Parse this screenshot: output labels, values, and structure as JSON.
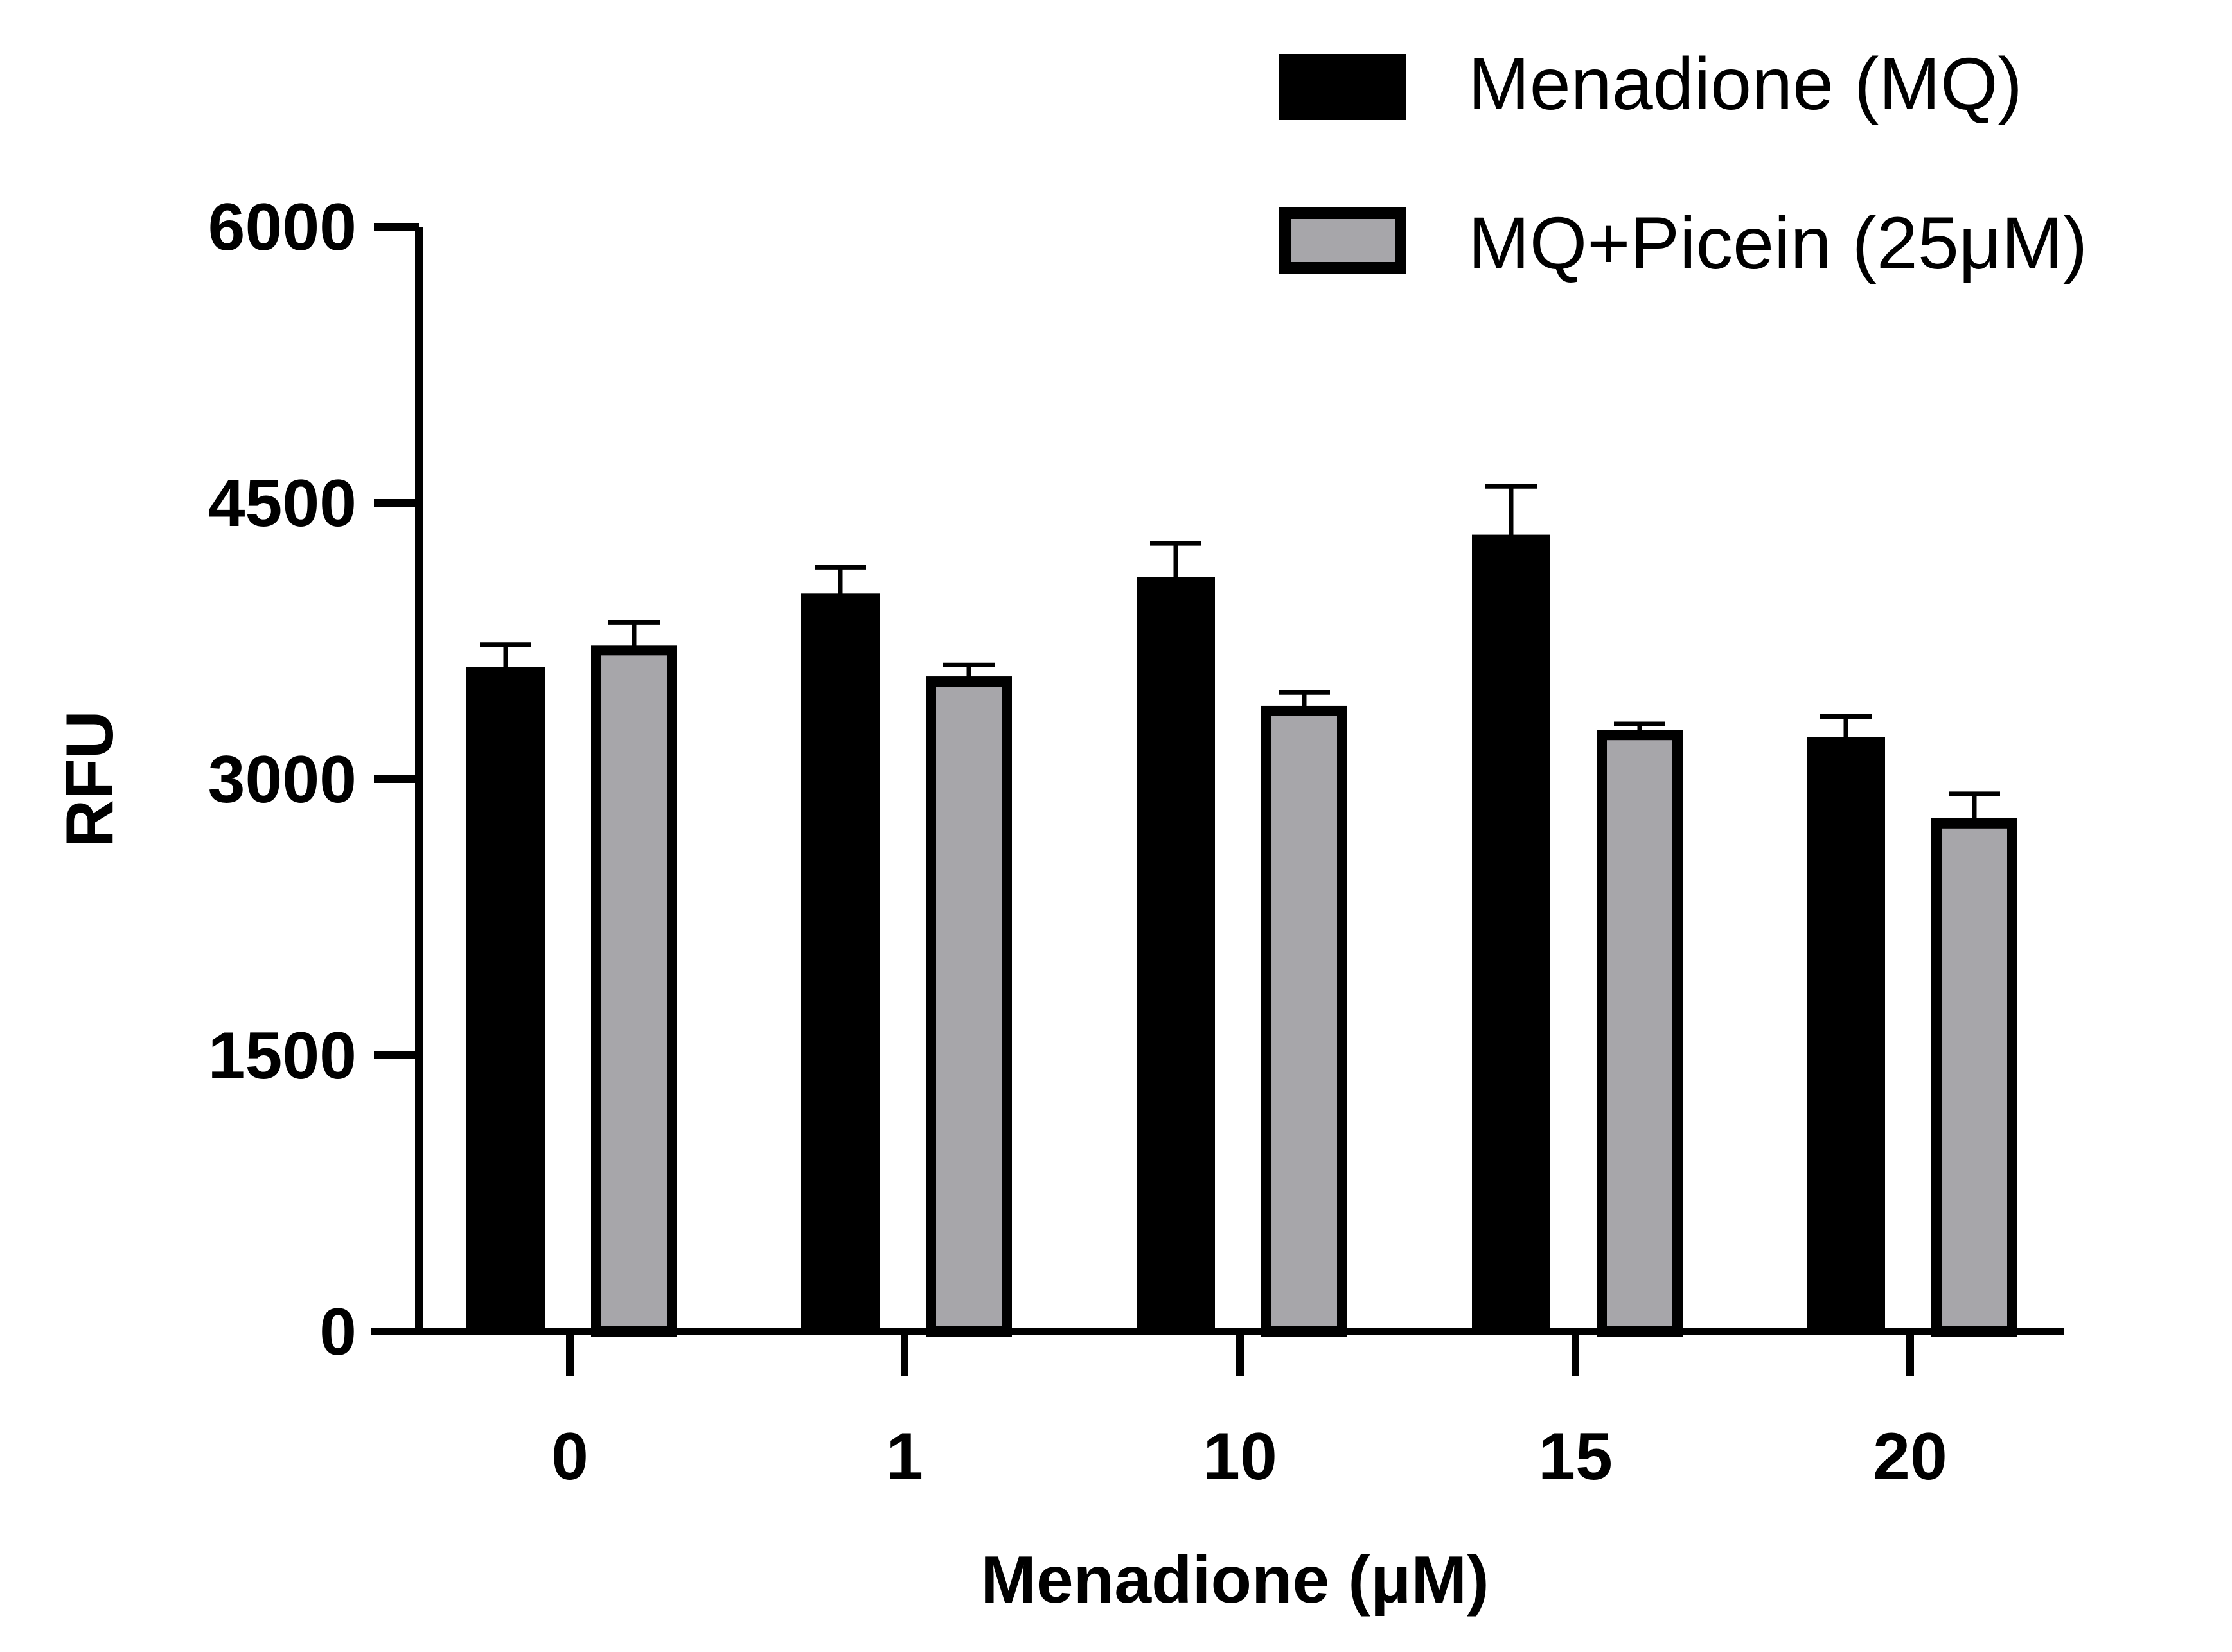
{
  "chart_data": {
    "type": "bar",
    "title": "",
    "xlabel": "Menadione (μM)",
    "ylabel": "RFU",
    "categories": [
      "0",
      "1",
      "10",
      "15",
      "20"
    ],
    "ylim": [
      0,
      6000
    ],
    "yticks": [
      "0",
      "1500",
      "3000",
      "4500",
      "6000"
    ],
    "grid": false,
    "legend_position": "top-right",
    "series": [
      {
        "name": "Menadione (MQ)",
        "color": "#000000",
        "outline": "#000000",
        "values": [
          3600,
          4000,
          4090,
          4320,
          3220
        ],
        "errors": [
          130,
          150,
          190,
          270,
          120
        ]
      },
      {
        "name": "MQ+Picein (25μM)",
        "color": "#a7a6aa",
        "outline": "#000000",
        "values": [
          3700,
          3530,
          3370,
          3240,
          2760
        ],
        "errors": [
          150,
          90,
          100,
          60,
          160
        ]
      }
    ]
  }
}
